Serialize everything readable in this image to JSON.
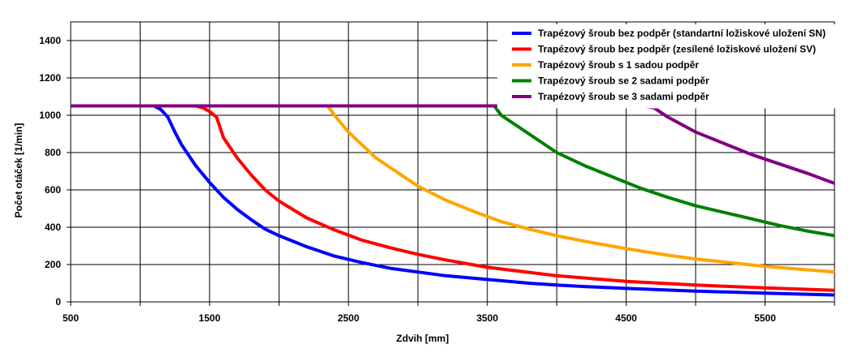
{
  "chart_data": {
    "type": "line",
    "title": "",
    "xlabel": "Zdvih [mm]",
    "ylabel": "Počet otáček  [1/min]",
    "xlim": [
      500,
      6000
    ],
    "ylim": [
      0,
      1500
    ],
    "xticks": [
      500,
      1500,
      2500,
      3500,
      4500,
      5500
    ],
    "xgrid": [
      500,
      1000,
      1500,
      2000,
      2500,
      3000,
      3500,
      4000,
      4500,
      5000,
      5500,
      6000
    ],
    "yticks": [
      0,
      200,
      400,
      600,
      800,
      1000,
      1200,
      1400
    ],
    "grid": true,
    "legend_position": "top-right",
    "series": [
      {
        "name": "Trapézový šroub bez podpěr (standartní ložiskové uložení SN)",
        "color": "#0000ff",
        "x": [
          500,
          1100,
          1150,
          1200,
          1250,
          1300,
          1400,
          1500,
          1600,
          1700,
          1800,
          1900,
          2000,
          2200,
          2400,
          2600,
          2800,
          3000,
          3200,
          3500,
          3800,
          4000,
          4200,
          4500,
          5000,
          5500,
          6000
        ],
        "y": [
          1050,
          1050,
          1030,
          990,
          910,
          840,
          730,
          640,
          560,
          495,
          440,
          390,
          355,
          295,
          245,
          210,
          180,
          160,
          140,
          120,
          100,
          90,
          82,
          72,
          58,
          47,
          37
        ]
      },
      {
        "name": "Trapézový šroub bez podpěr (zesílené ložiskové uložení SV)",
        "color": "#ff0000",
        "x": [
          500,
          1400,
          1450,
          1500,
          1550,
          1600,
          1700,
          1800,
          1900,
          2000,
          2200,
          2400,
          2600,
          2800,
          3000,
          3200,
          3500,
          4000,
          4500,
          5000,
          5500,
          6000
        ],
        "y": [
          1050,
          1050,
          1040,
          1020,
          990,
          880,
          770,
          680,
          600,
          540,
          450,
          385,
          330,
          290,
          255,
          225,
          185,
          140,
          110,
          90,
          75,
          62
        ]
      },
      {
        "name": "Trapézový šroub s 1 sadou podpěr",
        "color": "#ffa500",
        "x": [
          500,
          2350,
          2400,
          2500,
          2600,
          2700,
          2800,
          3000,
          3200,
          3400,
          3600,
          3800,
          4000,
          4200,
          4500,
          4800,
          5000,
          5500,
          6000
        ],
        "y": [
          1050,
          1050,
          1000,
          910,
          840,
          770,
          720,
          620,
          545,
          485,
          430,
          390,
          355,
          325,
          285,
          250,
          230,
          190,
          160
        ]
      },
      {
        "name": "Trapézový šroub se 2 sadami podpěr",
        "color": "#008000",
        "x": [
          500,
          3550,
          3600,
          3700,
          3800,
          3900,
          4000,
          4200,
          4400,
          4600,
          4800,
          5000,
          5200,
          5400,
          5600,
          5800,
          6000
        ],
        "y": [
          1050,
          1050,
          1000,
          950,
          900,
          850,
          800,
          730,
          670,
          610,
          560,
          515,
          480,
          445,
          410,
          380,
          355
        ]
      },
      {
        "name": "Trapézový šroub se 3 sadami podpěr",
        "color": "#800080",
        "x": [
          500,
          4600,
          4700,
          4800,
          4900,
          5000,
          5200,
          5400,
          5600,
          5800,
          6000
        ],
        "y": [
          1050,
          1050,
          1040,
          990,
          950,
          910,
          850,
          790,
          740,
          690,
          635
        ]
      }
    ]
  }
}
